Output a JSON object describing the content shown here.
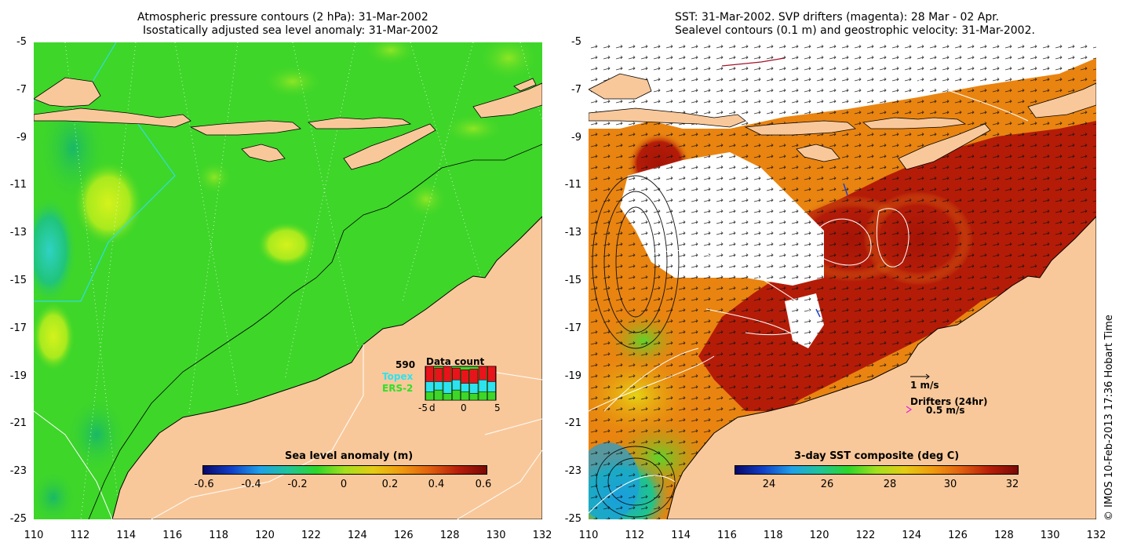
{
  "left": {
    "title1": "Atmospheric pressure contours (2 hPa): 31-Mar-2002",
    "title2": "Isostatically adjusted sea level anomaly: 31-Mar-2002",
    "colorbar_label": "Sea level anomaly (m)",
    "colorbar_ticks": [
      "-0.6",
      "-0.4",
      "-0.2",
      "0",
      "0.2",
      "0.4",
      "0.6"
    ],
    "legend": {
      "count": "590",
      "topex": "Topex",
      "ers": "ERS-2",
      "data_count_title": "Data count",
      "axis_ticks": [
        "-5",
        "0",
        "5"
      ],
      "axis_d": "d"
    }
  },
  "right": {
    "title1": "SST: 31-Mar-2002. SVP drifters (magenta): 28 Mar - 02 Apr.",
    "title2": "Sealevel contours (0.1 m) and geostrophic velocity: 31-Mar-2002.",
    "colorbar_label": "3-day SST composite (deg C)",
    "colorbar_ticks": [
      "24",
      "26",
      "28",
      "30",
      "32"
    ],
    "vel_label": "1 m/s",
    "drifters_label": "Drifters (24hr)",
    "drifters_speed": "0.5 m/s"
  },
  "y_ticks": [
    "-5",
    "-7",
    "-9",
    "-11",
    "-13",
    "-15",
    "-17",
    "-19",
    "-21",
    "-23",
    "-25"
  ],
  "x_ticks": [
    "110",
    "112",
    "114",
    "116",
    "118",
    "120",
    "122",
    "124",
    "126",
    "128",
    "130",
    "132"
  ],
  "copyright": "© IMOS 10-Feb-2013 17:36 Hobart Time",
  "colors": {
    "land": "#f9c89a",
    "ocean_green": "#3ed629",
    "sst_orange": "#e98410",
    "sst_red": "#b41c08",
    "cloud": "#ffffff"
  },
  "legend_bars": {
    "red": [
      0.45,
      0.4,
      0.45,
      0.35,
      0.4,
      0.42,
      0.4,
      0.45
    ],
    "cyan": [
      0.3,
      0.25,
      0.35,
      0.3,
      0.25,
      0.3,
      0.35,
      0.3
    ],
    "green": [
      0.25,
      0.3,
      0.2,
      0.3,
      0.25,
      0.2,
      0.25,
      0.25
    ]
  }
}
